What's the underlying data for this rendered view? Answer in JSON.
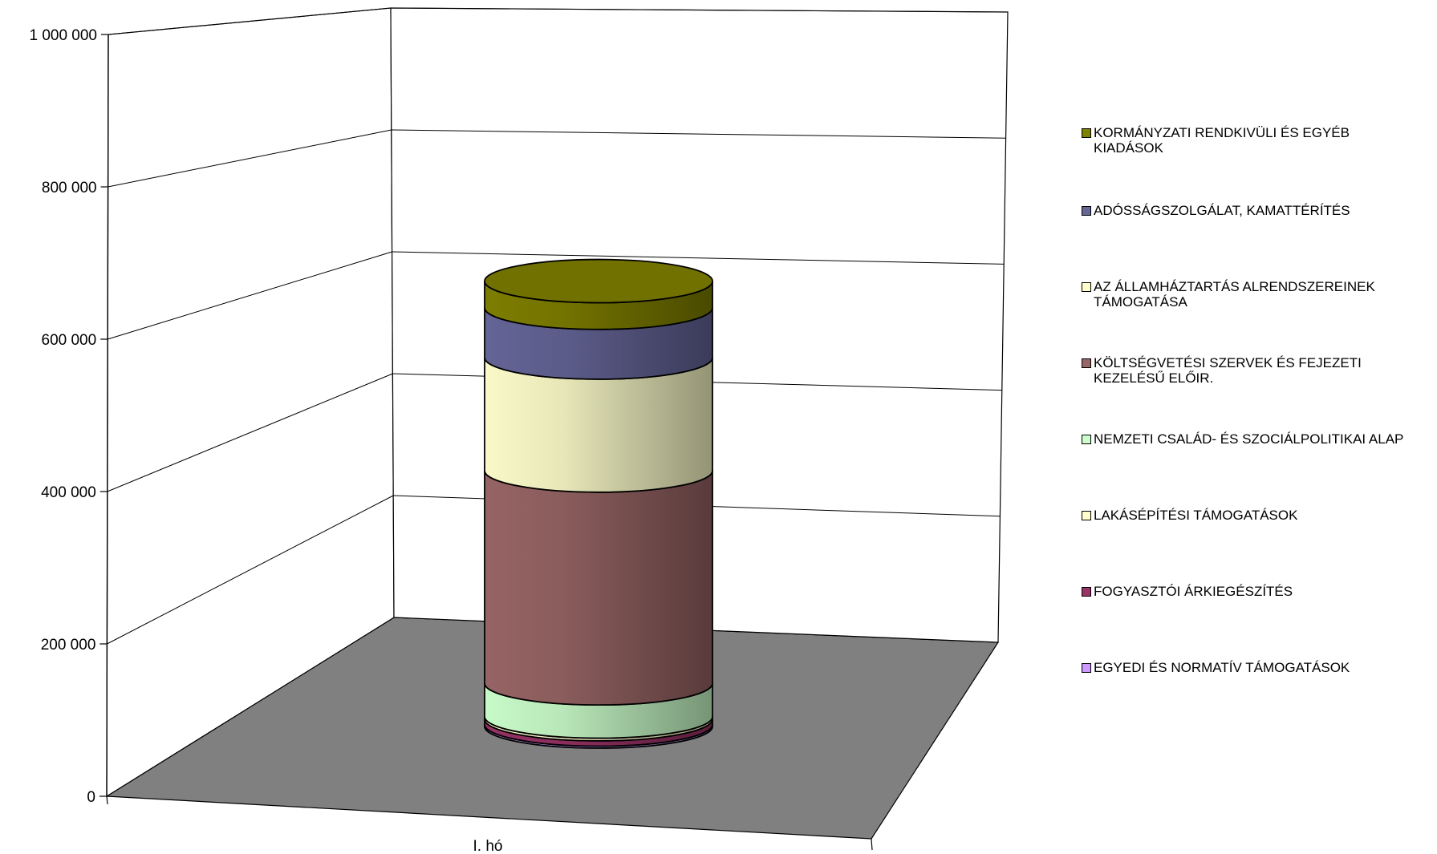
{
  "chart_data": {
    "type": "bar",
    "subtype": "3d-stacked-cylinder",
    "categories": [
      "I. hó"
    ],
    "y_ticks": [
      "0",
      "200 000",
      "400 000",
      "600 000",
      "800 000",
      "1 000 000"
    ],
    "ylim": [
      0,
      1000000
    ],
    "grid": true,
    "legend_position": "right",
    "series": [
      {
        "name": "EGYEDI ÉS NORMATÍV TÁMOGATÁSOK",
        "color": "#CC99FF",
        "values": [
          3000
        ]
      },
      {
        "name": "FOGYASZTÓI ÁRKIEGÉSZÍTÉS",
        "color": "#993366",
        "values": [
          8000
        ]
      },
      {
        "name": "LAKÁSÉPÍTÉSI TÁMOGATÁSOK",
        "color": "#FFFFCC",
        "values": [
          4000
        ]
      },
      {
        "name": "NEMZETI CSALÁD- ÉS SZOCIÁLPOLITIKAI ALAP",
        "color": "#CCFFCC",
        "values": [
          50000
        ]
      },
      {
        "name": " KÖLTSÉGVETÉSI SZERVEK ÉS FEJEZETI\nKEZELÉSŰ ELŐIR.",
        "color": "#996666",
        "values": [
          320000
        ]
      },
      {
        "name": "AZ ÁLLAMHÁZTARTÁS ALRENDSZEREINEK\nTÁMOGATÁSA",
        "color": "#FFFFCC",
        "values": [
          170000
        ]
      },
      {
        "name": "ADÓSSÁGSZOLGÁLAT, KAMATTÉRÍTÉS",
        "color": "#666699",
        "values": [
          75000
        ]
      },
      {
        "name": "KORMÁNYZATI RENDKIVÜLI ÉS EGYÉB\nKIADÁSOK",
        "color": "#808000",
        "values": [
          40000
        ]
      }
    ],
    "wall_color": "#FFFFFF",
    "floor_color": "#808080"
  }
}
